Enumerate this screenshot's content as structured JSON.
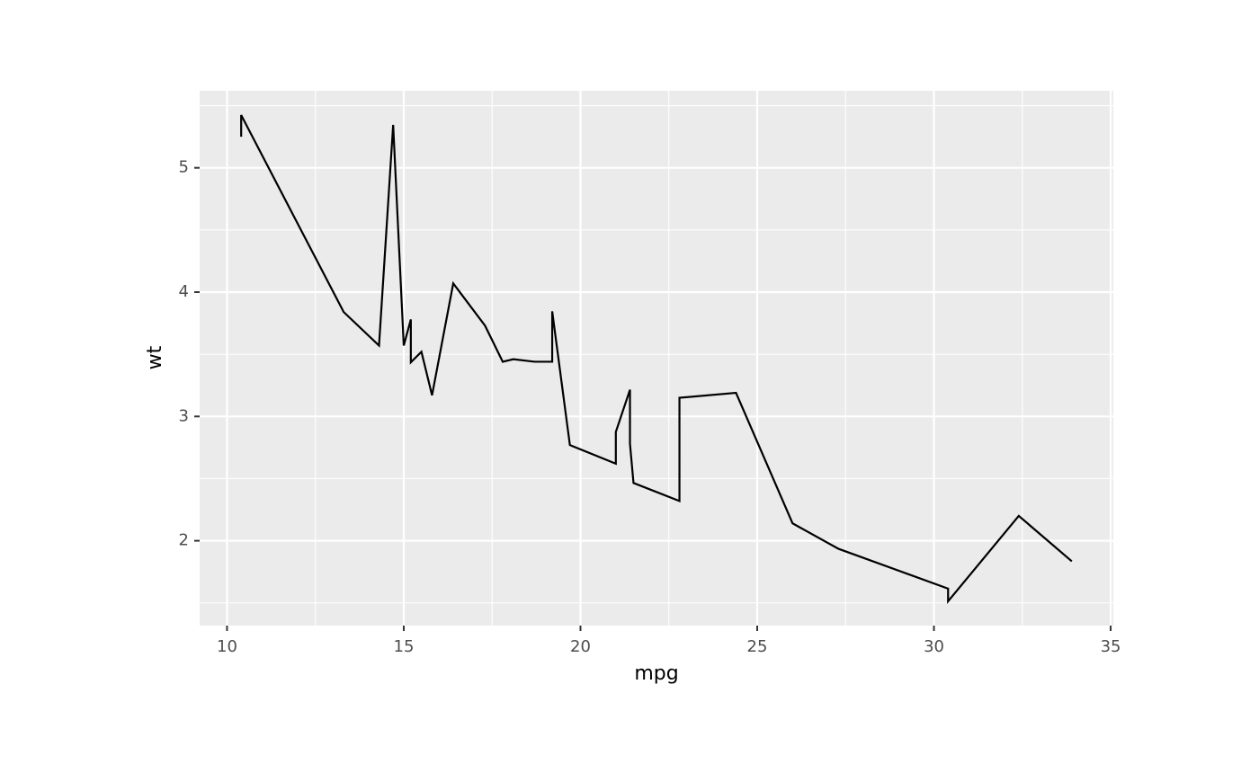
{
  "chart_data": {
    "type": "line",
    "x_label": "mpg",
    "y_label": "wt",
    "x": [
      10.4,
      10.4,
      13.3,
      14.3,
      14.7,
      15.0,
      15.2,
      15.2,
      15.5,
      15.8,
      16.4,
      17.3,
      17.8,
      18.1,
      18.7,
      19.2,
      19.2,
      19.7,
      21.0,
      21.0,
      21.4,
      21.4,
      21.5,
      22.8,
      22.8,
      24.4,
      26.0,
      27.3,
      30.4,
      30.4,
      32.4,
      33.9
    ],
    "values": [
      5.25,
      5.424,
      3.84,
      3.57,
      5.345,
      3.57,
      3.78,
      3.435,
      3.52,
      3.17,
      4.07,
      3.73,
      3.44,
      3.46,
      3.44,
      3.44,
      3.845,
      2.77,
      2.62,
      2.875,
      3.215,
      2.78,
      2.465,
      2.32,
      3.15,
      3.19,
      2.14,
      1.935,
      1.615,
      1.513,
      2.2,
      1.835
    ],
    "color": "#000000",
    "xlim": [
      9.225,
      35.075
    ],
    "ylim": [
      1.31745,
      5.61955
    ],
    "xticks": [
      10,
      15,
      20,
      25,
      30,
      35
    ],
    "yticks": [
      2,
      3,
      4,
      5
    ],
    "x_minor_ticks": [
      12.5,
      17.5,
      22.5,
      27.5,
      32.5
    ],
    "y_minor_ticks": [
      1.5,
      2.5,
      3.5,
      4.5,
      5.5
    ],
    "grid": true
  }
}
